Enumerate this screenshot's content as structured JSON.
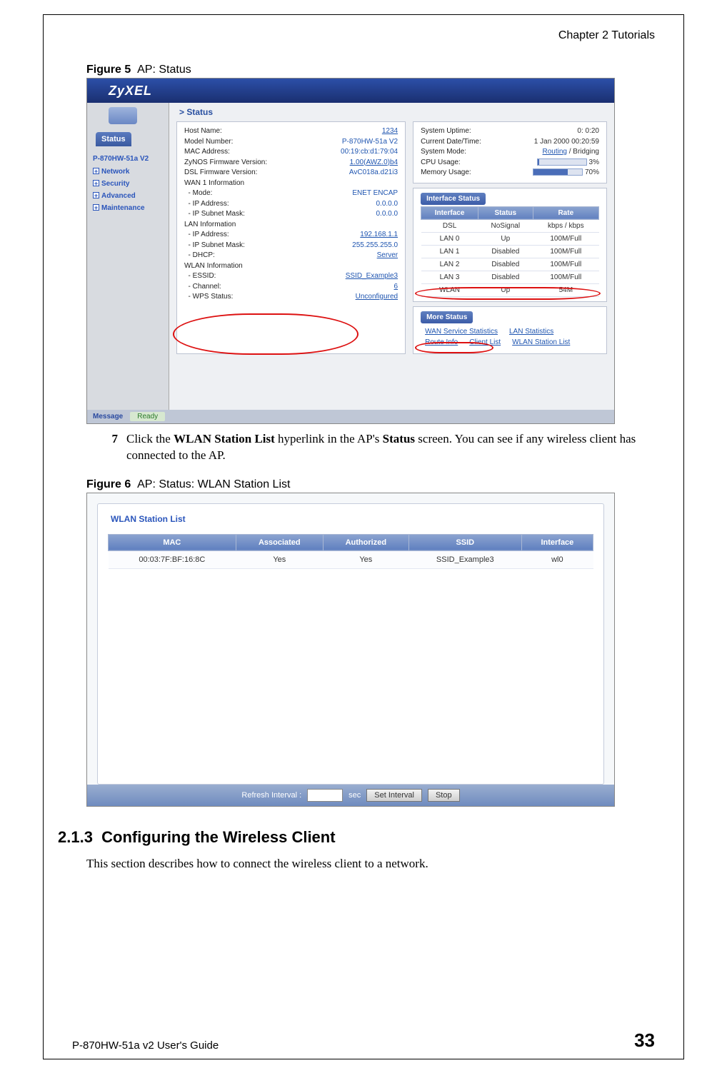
{
  "header": {
    "chapter": "Chapter 2 Tutorials"
  },
  "fig5": {
    "caption_label": "Figure 5",
    "caption_text": "AP: Status",
    "logo": "ZyXEL",
    "status_tab": "Status",
    "model_header": "P-870HW-51a V2",
    "nav": [
      "Network",
      "Security",
      "Advanced",
      "Maintenance"
    ],
    "status_title": "Status",
    "left_rows": [
      {
        "k": "Host Name:",
        "v": "1234",
        "link": true
      },
      {
        "k": "Model Number:",
        "v": "P-870HW-51a V2",
        "link": false
      },
      {
        "k": "MAC Address:",
        "v": "00:19:cb:d1:79:04",
        "link": false
      },
      {
        "k": "ZyNOS Firmware Version:",
        "v": "1.00(AWZ.0)b4",
        "link": true
      },
      {
        "k": "DSL Firmware Version:",
        "v": "AvC018a.d21i3",
        "link": false
      },
      {
        "k": "WAN 1 Information",
        "v": "",
        "link": false
      },
      {
        "k": "  - Mode:",
        "v": "ENET ENCAP",
        "link": false
      },
      {
        "k": "  - IP Address:",
        "v": "0.0.0.0",
        "link": false
      },
      {
        "k": "  - IP Subnet Mask:",
        "v": "0.0.0.0",
        "link": false
      },
      {
        "k": "LAN Information",
        "v": "",
        "link": false
      },
      {
        "k": "  - IP Address:",
        "v": "192.168.1.1",
        "link": true
      },
      {
        "k": "  - IP Subnet Mask:",
        "v": "255.255.255.0",
        "link": false
      },
      {
        "k": "  - DHCP:",
        "v": "Server",
        "link": true
      },
      {
        "k": "WLAN Information",
        "v": "",
        "link": false
      },
      {
        "k": "  - ESSID:",
        "v": "SSID_Example3",
        "link": true
      },
      {
        "k": "  - Channel:",
        "v": "6",
        "link": true
      },
      {
        "k": "  - WPS Status:",
        "v": "Unconfigured",
        "link": true
      }
    ],
    "right_top": [
      {
        "k": "System Uptime:",
        "v": "0: 0:20"
      },
      {
        "k": "Current Date/Time:",
        "v": "1 Jan 2000 00:20:59"
      },
      {
        "k": "System Mode:",
        "v": "Routing / Bridging",
        "routing_link": true
      },
      {
        "k": "CPU Usage:",
        "v": "3%",
        "bar": 3
      },
      {
        "k": "Memory Usage:",
        "v": "70%",
        "bar": 70
      }
    ],
    "iface_header": "Interface Status",
    "iface_cols": [
      "Interface",
      "Status",
      "Rate"
    ],
    "iface_rows": [
      [
        "DSL",
        "NoSignal",
        "kbps / kbps"
      ],
      [
        "LAN 0",
        "Up",
        "100M/Full"
      ],
      [
        "LAN 1",
        "Disabled",
        "100M/Full"
      ],
      [
        "LAN 2",
        "Disabled",
        "100M/Full"
      ],
      [
        "LAN 3",
        "Disabled",
        "100M/Full"
      ],
      [
        "WLAN",
        "Up",
        "54M"
      ]
    ],
    "more_header": "More Status",
    "more_links": [
      "WAN Service Statistics",
      "LAN Statistics",
      "Route Info",
      "Client List",
      "WLAN Station List"
    ],
    "msg_label": "Message",
    "ready": "Ready"
  },
  "step7": {
    "num": "7",
    "text_pre": "Click the ",
    "text_b1": "WLAN Station List",
    "text_mid": " hyperlink in the AP's ",
    "text_b2": "Status",
    "text_post": " screen. You can see if any wireless client has connected to the AP."
  },
  "fig6": {
    "caption_label": "Figure 6",
    "caption_text": "AP: Status: WLAN Station List",
    "title": "WLAN Station List",
    "cols": [
      "MAC",
      "Associated",
      "Authorized",
      "SSID",
      "Interface"
    ],
    "row": [
      "00:03:7F:BF:16:8C",
      "Yes",
      "Yes",
      "SSID_Example3",
      "wl0"
    ],
    "refresh_label": "Refresh Interval :",
    "sec_label": "sec",
    "btn_set": "Set Interval",
    "btn_stop": "Stop"
  },
  "section": {
    "num": "2.1.3",
    "title": "Configuring the Wireless Client",
    "body": "This section describes how to connect the wireless client to a network."
  },
  "footer": {
    "guide": "P-870HW-51a v2 User's Guide",
    "page": "33"
  },
  "colors": {
    "brand_blue": "#2a55bb",
    "grad_top": "#8ca4d0",
    "grad_bot": "#5f7fbf",
    "red_circle": "#d11"
  }
}
